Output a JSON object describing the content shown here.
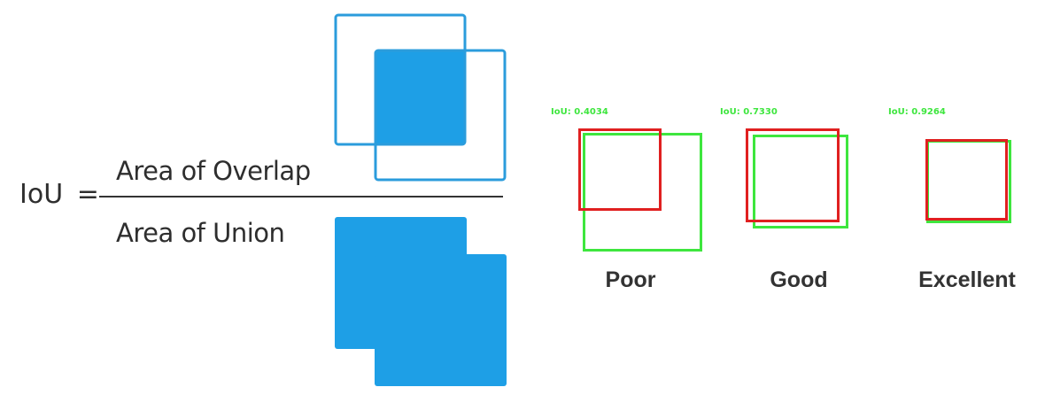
{
  "formula": {
    "lhs": "IoU",
    "equals": "=",
    "numerator": "Area of Overlap",
    "denominator": "Area of Union"
  },
  "colors": {
    "blue": "#1e9fe6",
    "outline_blue": "#2b9cdc",
    "red": "#e02020",
    "green": "#3ee63e",
    "text": "#2e2e2e"
  },
  "examples": [
    {
      "iou_text": "IoU: 0.4034",
      "iou_value": 0.4034,
      "quality": "Poor"
    },
    {
      "iou_text": "IoU: 0.7330",
      "iou_value": 0.733,
      "quality": "Good"
    },
    {
      "iou_text": "IoU: 0.9264",
      "iou_value": 0.9264,
      "quality": "Excellent"
    }
  ]
}
